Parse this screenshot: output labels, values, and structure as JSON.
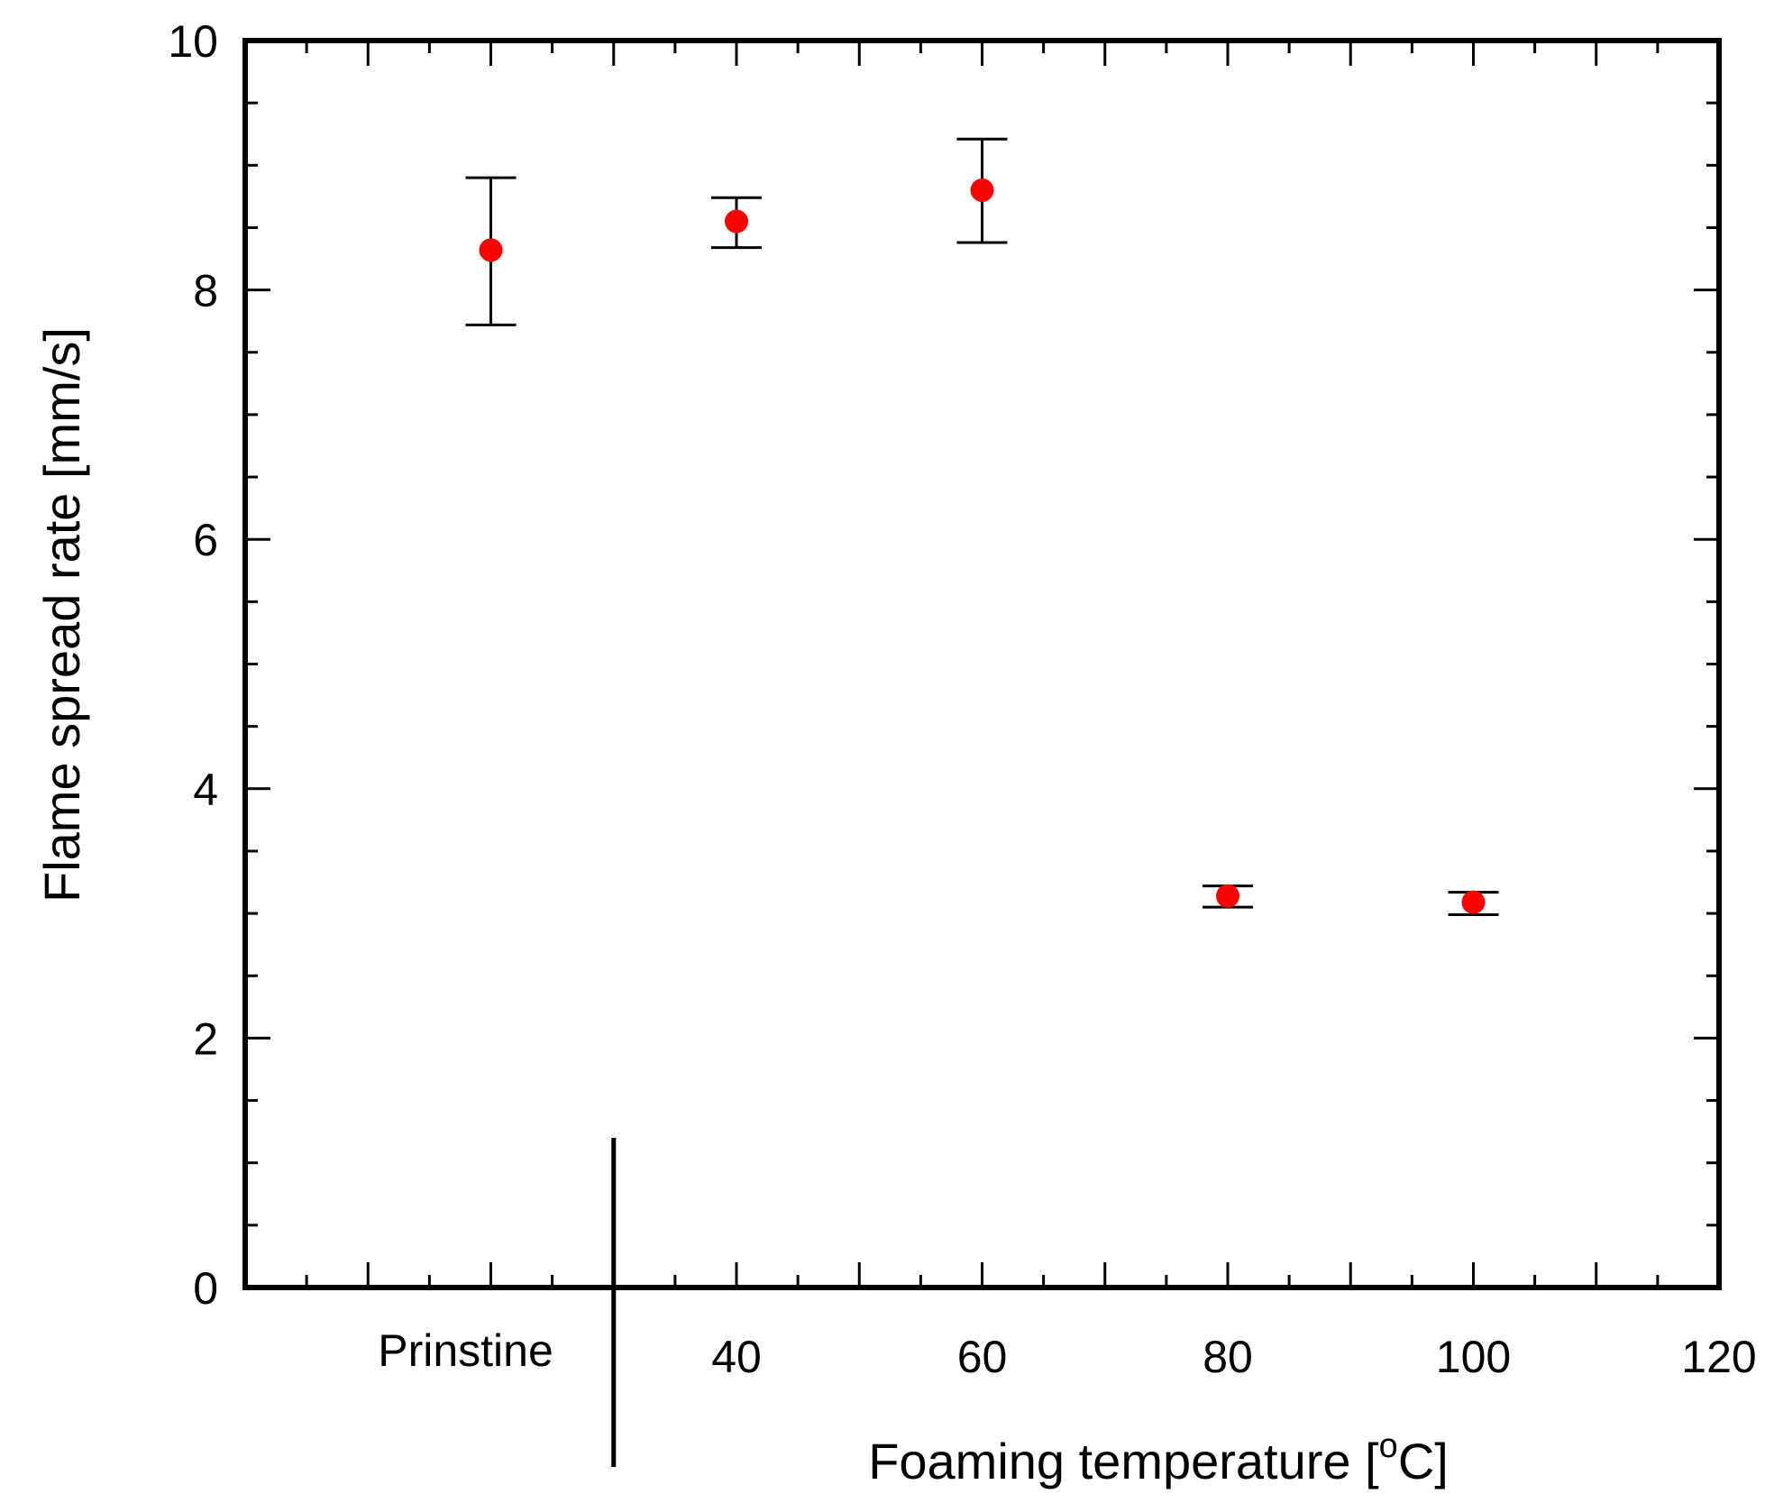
{
  "chart_data": {
    "type": "scatter",
    "title": "",
    "xlabel": "Foaming temperature [",
    "xlabel_superscript": "o",
    "xlabel_suffix": "C]",
    "ylabel": "Flame spread rate [mm/s]",
    "xlim": [
      0,
      120
    ],
    "ylim": [
      0,
      10
    ],
    "x_ticks_major": [
      40,
      60,
      80,
      100,
      120
    ],
    "x_tick_labels": [
      "40",
      "60",
      "80",
      "100",
      "120"
    ],
    "x_ticks_minor_step": 5,
    "category_label": "Prinstine",
    "category_x": 20,
    "separator_x": 30,
    "y_ticks_major": [
      0,
      2,
      4,
      6,
      8,
      10
    ],
    "y_tick_labels": [
      "0",
      "2",
      "4",
      "6",
      "8",
      "10"
    ],
    "y_ticks_minor_step": 0.5,
    "grid": false,
    "marker_color": "#ff0000",
    "errorbar_color": "#000000",
    "points": [
      {
        "label": "Prinstine",
        "x": 20,
        "y": 8.32,
        "err_low": 7.72,
        "err_high": 8.9
      },
      {
        "label": "40",
        "x": 40,
        "y": 8.55,
        "err_low": 8.34,
        "err_high": 8.74
      },
      {
        "label": "60",
        "x": 60,
        "y": 8.8,
        "err_low": 8.38,
        "err_high": 9.21
      },
      {
        "label": "80",
        "x": 80,
        "y": 3.14,
        "err_low": 3.05,
        "err_high": 3.22
      },
      {
        "label": "100",
        "x": 100,
        "y": 3.09,
        "err_low": 2.99,
        "err_high": 3.17
      }
    ]
  }
}
